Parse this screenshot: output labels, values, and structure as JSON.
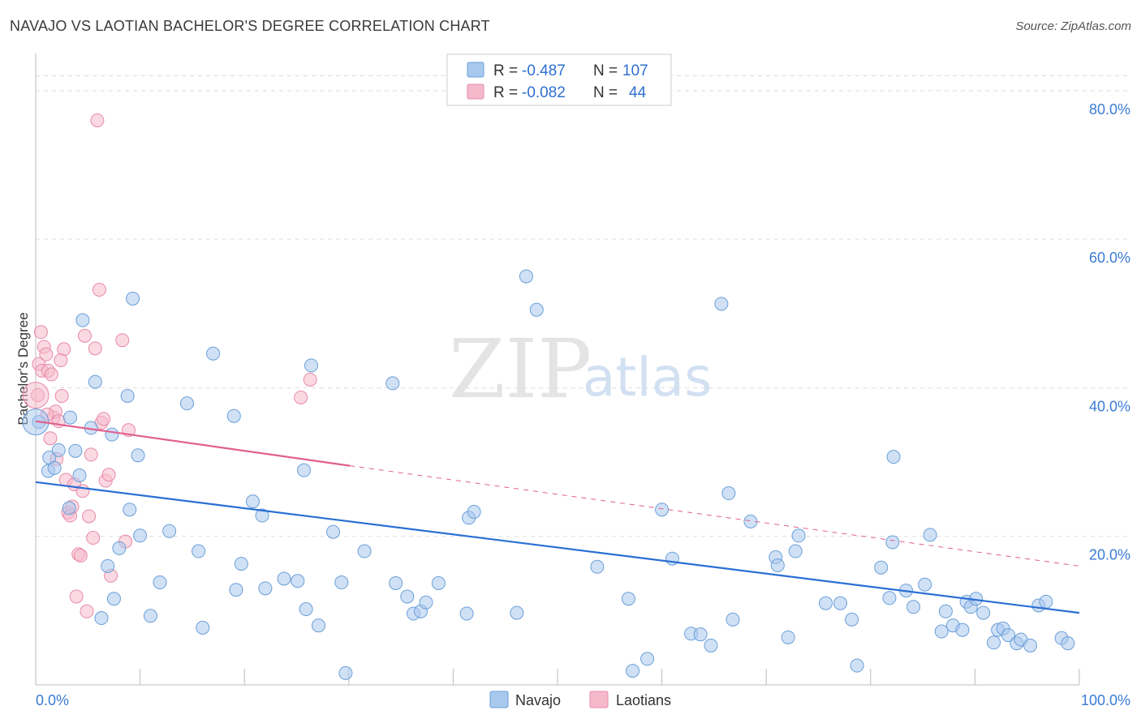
{
  "title": "NAVAJO VS LAOTIAN BACHELOR'S DEGREE CORRELATION CHART",
  "source": "Source: ZipAtlas.com",
  "watermark": {
    "zip": "ZIP",
    "atlas": "atlas"
  },
  "legend": {
    "rows": [
      {
        "r_label": "R =",
        "r_value": "-0.487",
        "n_label": "N =",
        "n_value": "107"
      },
      {
        "r_label": "R =",
        "r_value": "-0.082",
        "n_label": "N =",
        "n_value": "44"
      }
    ]
  },
  "bottom_legend": [
    "Navajo",
    "Laotians"
  ],
  "colors": {
    "navajo_fill": "#a9c8ee",
    "navajo_stroke": "#6a9fd8",
    "navajo_line": "#2a6fd3",
    "laotian_fill": "#f6b9cc",
    "laotian_stroke": "#e88aa8",
    "laotian_line": "#e0608d",
    "grid": "#dddddd",
    "tick_text": "#3a7bd5"
  },
  "chart_data": {
    "type": "scatter",
    "title": "NAVAJO VS LAOTIAN BACHELOR'S DEGREE CORRELATION CHART",
    "xlabel": "",
    "ylabel": "Bachelor's Degree",
    "xlim": [
      0,
      100
    ],
    "ylim": [
      0,
      85
    ],
    "x_tick_labels": [
      {
        "value": 0,
        "label": "0.0%"
      },
      {
        "value": 100,
        "label": "100.0%"
      }
    ],
    "y_tick_labels": [
      {
        "value": 20,
        "label": "20.0%"
      },
      {
        "value": 40,
        "label": "40.0%"
      },
      {
        "value": 60,
        "label": "60.0%"
      },
      {
        "value": 80,
        "label": "80.0%"
      }
    ],
    "grid": true,
    "series": [
      {
        "name": "Navajo",
        "r": -0.487,
        "n": 107,
        "trend": {
          "x0": 0,
          "y0": 27.3,
          "x1": 100,
          "y1": 9.7,
          "dashed_to": null
        },
        "points": [
          [
            0.3,
            35.4
          ],
          [
            1.2,
            28.8
          ],
          [
            1.3,
            30.6
          ],
          [
            1.8,
            29.2
          ],
          [
            2.2,
            31.6
          ],
          [
            3.2,
            23.8
          ],
          [
            3.3,
            36.0
          ],
          [
            3.8,
            31.5
          ],
          [
            4.2,
            28.2
          ],
          [
            4.5,
            49.1
          ],
          [
            5.3,
            34.6
          ],
          [
            5.7,
            40.8
          ],
          [
            6.3,
            9.0
          ],
          [
            6.9,
            16.0
          ],
          [
            7.3,
            33.7
          ],
          [
            7.5,
            11.6
          ],
          [
            8.0,
            18.4
          ],
          [
            8.8,
            38.9
          ],
          [
            9.0,
            23.6
          ],
          [
            9.3,
            52.0
          ],
          [
            9.8,
            30.9
          ],
          [
            10.0,
            20.1
          ],
          [
            11.0,
            9.3
          ],
          [
            11.9,
            13.8
          ],
          [
            12.8,
            20.7
          ],
          [
            14.5,
            37.9
          ],
          [
            15.6,
            18.0
          ],
          [
            16.0,
            7.7
          ],
          [
            17.0,
            44.6
          ],
          [
            19.0,
            36.2
          ],
          [
            19.2,
            12.8
          ],
          [
            19.7,
            16.3
          ],
          [
            20.8,
            24.7
          ],
          [
            21.7,
            22.8
          ],
          [
            22.0,
            13.0
          ],
          [
            23.8,
            14.3
          ],
          [
            25.1,
            14.0
          ],
          [
            25.7,
            28.9
          ],
          [
            25.9,
            10.2
          ],
          [
            26.4,
            43.0
          ],
          [
            27.1,
            8.0
          ],
          [
            28.5,
            20.6
          ],
          [
            29.3,
            13.8
          ],
          [
            29.7,
            1.6
          ],
          [
            31.5,
            18.0
          ],
          [
            34.2,
            40.6
          ],
          [
            34.5,
            13.7
          ],
          [
            35.6,
            11.9
          ],
          [
            36.2,
            9.6
          ],
          [
            36.9,
            9.9
          ],
          [
            37.4,
            11.1
          ],
          [
            38.6,
            13.7
          ],
          [
            41.3,
            9.6
          ],
          [
            41.5,
            22.5
          ],
          [
            42.0,
            23.3
          ],
          [
            46.1,
            9.7
          ],
          [
            47.0,
            55.0
          ],
          [
            48.0,
            50.5
          ],
          [
            53.8,
            15.9
          ],
          [
            56.8,
            11.6
          ],
          [
            57.2,
            1.9
          ],
          [
            58.6,
            3.5
          ],
          [
            60.0,
            23.6
          ],
          [
            61.0,
            17.0
          ],
          [
            62.8,
            6.9
          ],
          [
            63.7,
            6.8
          ],
          [
            64.7,
            5.3
          ],
          [
            65.7,
            51.3
          ],
          [
            66.4,
            25.8
          ],
          [
            66.8,
            8.8
          ],
          [
            68.5,
            22.0
          ],
          [
            70.9,
            17.2
          ],
          [
            71.1,
            16.1
          ],
          [
            72.1,
            6.4
          ],
          [
            72.8,
            18.0
          ],
          [
            73.1,
            20.1
          ],
          [
            75.7,
            11.0
          ],
          [
            77.1,
            11.0
          ],
          [
            78.2,
            8.8
          ],
          [
            78.7,
            2.6
          ],
          [
            81.0,
            15.8
          ],
          [
            81.8,
            11.7
          ],
          [
            82.1,
            19.2
          ],
          [
            82.2,
            30.7
          ],
          [
            83.4,
            12.7
          ],
          [
            84.1,
            10.5
          ],
          [
            85.2,
            13.5
          ],
          [
            85.7,
            20.2
          ],
          [
            86.8,
            7.2
          ],
          [
            87.2,
            9.9
          ],
          [
            87.9,
            8.0
          ],
          [
            88.8,
            7.4
          ],
          [
            89.2,
            11.2
          ],
          [
            89.6,
            10.5
          ],
          [
            90.1,
            11.6
          ],
          [
            90.8,
            9.7
          ],
          [
            91.8,
            5.7
          ],
          [
            92.2,
            7.4
          ],
          [
            92.7,
            7.6
          ],
          [
            93.2,
            6.7
          ],
          [
            94.0,
            5.6
          ],
          [
            94.4,
            6.1
          ],
          [
            95.3,
            5.3
          ],
          [
            96.1,
            10.7
          ],
          [
            96.8,
            11.2
          ],
          [
            98.3,
            6.3
          ],
          [
            98.9,
            5.6
          ]
        ]
      },
      {
        "name": "Laotians",
        "r": -0.082,
        "n": 44,
        "trend": {
          "x0": 0,
          "y0": 35.5,
          "x1": 30.1,
          "y1": 29.5,
          "dashed_to": {
            "x": 100,
            "y": 16.0
          }
        },
        "points": [
          [
            0.2,
            39.0
          ],
          [
            0.3,
            43.2
          ],
          [
            0.5,
            47.5
          ],
          [
            0.6,
            42.3
          ],
          [
            0.8,
            45.5
          ],
          [
            1.0,
            44.5
          ],
          [
            1.2,
            42.3
          ],
          [
            1.4,
            33.2
          ],
          [
            1.5,
            41.8
          ],
          [
            1.7,
            36.0
          ],
          [
            1.9,
            36.8
          ],
          [
            2.0,
            30.4
          ],
          [
            2.2,
            35.5
          ],
          [
            2.5,
            38.9
          ],
          [
            2.7,
            45.2
          ],
          [
            2.9,
            27.6
          ],
          [
            3.1,
            23.2
          ],
          [
            3.3,
            22.8
          ],
          [
            3.5,
            24.0
          ],
          [
            3.7,
            27.0
          ],
          [
            3.9,
            11.9
          ],
          [
            4.1,
            17.6
          ],
          [
            4.3,
            17.4
          ],
          [
            4.5,
            26.1
          ],
          [
            4.7,
            47.0
          ],
          [
            4.9,
            9.9
          ],
          [
            5.1,
            22.7
          ],
          [
            5.3,
            31.0
          ],
          [
            5.5,
            19.8
          ],
          [
            5.7,
            45.3
          ],
          [
            5.9,
            76.0
          ],
          [
            6.1,
            53.2
          ],
          [
            6.3,
            35.3
          ],
          [
            6.5,
            35.8
          ],
          [
            6.7,
            27.5
          ],
          [
            7.0,
            28.3
          ],
          [
            7.2,
            14.7
          ],
          [
            8.3,
            46.4
          ],
          [
            8.6,
            19.3
          ],
          [
            8.9,
            34.3
          ],
          [
            25.4,
            38.7
          ],
          [
            26.3,
            41.1
          ],
          [
            1.1,
            36.4
          ],
          [
            2.4,
            43.7
          ]
        ]
      }
    ]
  }
}
